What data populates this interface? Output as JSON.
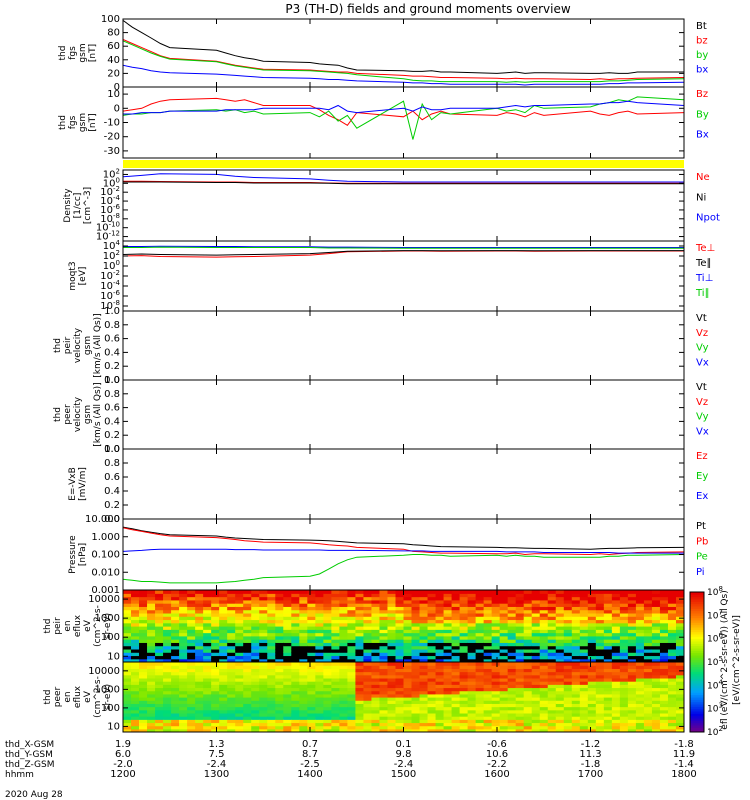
{
  "figure": {
    "title": "P3 (TH-D) fields and ground moments overview",
    "date_label": "2020 Aug 28",
    "colorbar_label": "[eV/(cm^2-s-sr-eV)]",
    "colorbar_label_inner": "efl (eV/(cm^2-s-sr-eV)) (All Qs)"
  },
  "chart_data": [
    {
      "id": "fgs_gsm",
      "type": "line",
      "ylabel": [
        "thd",
        "fgs",
        "gsm",
        "[nT]"
      ],
      "ylim": [
        0,
        100
      ],
      "ytick_labels": [
        "0",
        "20",
        "40",
        "60",
        "80",
        "100"
      ],
      "x": [
        1200,
        1210,
        1220,
        1230,
        1240,
        1250,
        1300,
        1310,
        1320,
        1330,
        1340,
        1350,
        1400,
        1410,
        1420,
        1430,
        1440,
        1450,
        1500,
        1510,
        1520,
        1530,
        1540,
        1550,
        1600,
        1610,
        1620,
        1630,
        1640,
        1650,
        1700,
        1710,
        1720,
        1730,
        1740,
        1750,
        1800
      ],
      "series": [
        {
          "name": "Bt",
          "color": "#000000",
          "values": [
            98,
            88,
            80,
            72,
            64,
            58,
            54,
            50,
            46,
            43,
            41,
            38,
            36,
            34,
            33,
            32,
            28,
            25,
            24,
            23,
            23,
            24,
            22,
            22,
            20,
            21,
            22,
            20,
            21,
            21,
            20,
            20,
            21,
            20,
            20,
            22,
            22
          ]
        },
        {
          "name": "bz",
          "color": "#ff0000",
          "values": [
            70,
            64,
            58,
            52,
            46,
            42,
            38,
            35,
            32,
            30,
            28,
            26,
            25,
            24,
            23,
            22,
            22,
            20,
            17,
            16,
            16,
            15,
            14,
            14,
            13,
            12,
            13,
            12,
            12,
            12,
            11,
            12,
            11,
            12,
            12,
            13,
            14
          ]
        },
        {
          "name": "by",
          "color": "#00cc00",
          "values": [
            68,
            62,
            56,
            50,
            45,
            41,
            37,
            34,
            31,
            29,
            27,
            25,
            24,
            23,
            22,
            21,
            20,
            18,
            12,
            10,
            9,
            9,
            8,
            8,
            8,
            7,
            8,
            7,
            8,
            8,
            8,
            8,
            9,
            9,
            10,
            11,
            12
          ]
        },
        {
          "name": "bx",
          "color": "#0000ff",
          "values": [
            32,
            29,
            27,
            24,
            22,
            21,
            19,
            18,
            17,
            16,
            15,
            14,
            13,
            12,
            11,
            11,
            10,
            9,
            7,
            6,
            6,
            5,
            5,
            4,
            4,
            4,
            4,
            3,
            4,
            4,
            4,
            4,
            5,
            5,
            6,
            6,
            7
          ]
        }
      ]
    },
    {
      "id": "fgs_gsm_detrend",
      "type": "line",
      "ylabel": [
        "thd",
        "fgs",
        "gsm",
        "[nT]"
      ],
      "ylim": [
        -35,
        15
      ],
      "ytick_labels": [
        "-30",
        "-20",
        "-10",
        "0",
        "10"
      ],
      "x": [
        1200,
        1210,
        1220,
        1230,
        1240,
        1250,
        1300,
        1310,
        1320,
        1330,
        1340,
        1350,
        1400,
        1410,
        1420,
        1430,
        1440,
        1450,
        1500,
        1510,
        1520,
        1530,
        1540,
        1550,
        1600,
        1610,
        1620,
        1630,
        1640,
        1650,
        1700,
        1710,
        1720,
        1730,
        1740,
        1750,
        1800
      ],
      "series": [
        {
          "name": "Bz",
          "color": "#ff0000",
          "values": [
            -2,
            -1,
            0,
            3,
            5,
            6,
            7,
            6,
            5,
            6,
            4,
            2,
            2,
            -1,
            -5,
            -8,
            -12,
            -3,
            -6,
            -2,
            -8,
            -4,
            -2,
            -4,
            -5,
            -3,
            -4,
            -6,
            -3,
            -5,
            -2,
            -4,
            -5,
            -3,
            -2,
            -4,
            -3
          ]
        },
        {
          "name": "By",
          "color": "#00cc00",
          "values": [
            -5,
            -4,
            -4,
            -3,
            -3,
            -2,
            -1,
            -2,
            -1,
            -3,
            -2,
            -4,
            -3,
            -6,
            -2,
            -9,
            -5,
            -14,
            5,
            -22,
            3,
            -8,
            -3,
            -4,
            0,
            -2,
            -1,
            -3,
            2,
            0,
            1,
            3,
            4,
            6,
            5,
            8,
            6
          ]
        },
        {
          "name": "Bx",
          "color": "#0000ff",
          "values": [
            -4,
            -4,
            -3,
            -3,
            -3,
            -2,
            -2,
            -1,
            -1,
            -1,
            -1,
            0,
            0,
            0,
            -1,
            2,
            -2,
            -3,
            0,
            -2,
            1,
            -1,
            -1,
            0,
            0,
            1,
            2,
            1,
            2,
            2,
            3,
            3,
            4,
            4,
            5,
            4,
            2
          ]
        }
      ]
    },
    {
      "id": "density",
      "type": "line",
      "log_y": true,
      "ylabel": [
        "Density",
        "[1/cc]",
        "[cm^-3]"
      ],
      "ylim": [
        1e-13,
        1000
      ],
      "ytick_labels": [
        "10^-12",
        "10^-10",
        "10^-8",
        "10^-6",
        "10^-4",
        "10^-2",
        "10^0",
        "10^2"
      ],
      "x": [
        1200,
        1220,
        1240,
        1300,
        1320,
        1340,
        1400,
        1420,
        1440,
        1500,
        1520,
        1540,
        1600,
        1620,
        1640,
        1700,
        1720,
        1740,
        1800
      ],
      "series": [
        {
          "name": "Ne",
          "color": "#ff0000",
          "values": [
            3,
            3,
            2.5,
            2,
            2,
            1.5,
            1.5,
            1.2,
            1,
            1,
            1,
            1,
            1,
            1,
            1,
            1,
            1,
            1,
            1
          ]
        },
        {
          "name": "Ni",
          "color": "#000000",
          "values": [
            2,
            2,
            2,
            1.5,
            1.5,
            1.2,
            1.2,
            1,
            0.8,
            0.8,
            0.8,
            0.8,
            0.8,
            0.8,
            0.8,
            0.8,
            0.8,
            0.8,
            0.8
          ]
        },
        {
          "name": "Npot",
          "color": "#0000ff",
          "values": [
            30,
            60,
            150,
            100,
            40,
            20,
            10,
            5,
            3,
            2,
            2,
            2,
            2,
            2,
            2,
            2,
            2,
            2,
            2
          ]
        }
      ]
    },
    {
      "id": "temperature",
      "type": "line",
      "log_y": true,
      "ylabel": [
        "moqt3",
        "[eV]"
      ],
      "ylim": [
        1e-09,
        100000
      ],
      "ytick_labels": [
        "10^-8",
        "10^-6",
        "10^-4",
        "10^-2",
        "10^0",
        "10^2",
        "10^4"
      ],
      "x": [
        1200,
        1220,
        1240,
        1300,
        1320,
        1340,
        1400,
        1420,
        1440,
        1500,
        1520,
        1540,
        1600,
        1620,
        1640,
        1700,
        1720,
        1740,
        1800
      ],
      "series": [
        {
          "name": "Te⊥",
          "color": "#ff0000",
          "values": [
            100,
            120,
            80,
            60,
            70,
            80,
            150,
            300,
            700,
            1000,
            1000,
            900,
            1000,
            1000,
            900,
            1000,
            1000,
            1000,
            1000
          ]
        },
        {
          "name": "Te∥",
          "color": "#000000",
          "values": [
            200,
            250,
            200,
            150,
            180,
            200,
            300,
            500,
            900,
            1200,
            1200,
            1100,
            1200,
            1200,
            1100,
            1200,
            1200,
            1200,
            1200
          ]
        },
        {
          "name": "Ti⊥",
          "color": "#0000ff",
          "values": [
            8000,
            8000,
            9000,
            8000,
            8000,
            7000,
            7000,
            6000,
            6000,
            5000,
            5000,
            5000,
            5000,
            5000,
            5000,
            5000,
            5000,
            5000,
            5000
          ]
        },
        {
          "name": "Ti∥",
          "color": "#00cc00",
          "values": [
            5000,
            5000,
            6000,
            5000,
            5000,
            5000,
            5000,
            4000,
            4000,
            3500,
            3500,
            3500,
            3500,
            3500,
            3500,
            3500,
            3500,
            3500,
            3500
          ]
        }
      ]
    },
    {
      "id": "peir_velocity",
      "type": "line",
      "ylabel": [
        "thd",
        "peir",
        "velocity",
        "gsm",
        "[km/s (All Qs)]"
      ],
      "ylim": [
        0,
        1
      ],
      "ytick_labels": [
        "0.0",
        "0.2",
        "0.4",
        "0.6",
        "0.8",
        "1.0"
      ],
      "series": [
        {
          "name": "Vt",
          "color": "#000000",
          "values": []
        },
        {
          "name": "Vz",
          "color": "#ff0000",
          "values": []
        },
        {
          "name": "Vy",
          "color": "#00cc00",
          "values": []
        },
        {
          "name": "Vx",
          "color": "#0000ff",
          "values": []
        }
      ]
    },
    {
      "id": "peer_velocity",
      "type": "line",
      "ylabel": [
        "thd",
        "peer",
        "velocity",
        "gsm",
        "[km/s (All Qs)]"
      ],
      "ylim": [
        0,
        1
      ],
      "ytick_labels": [
        "0.0",
        "0.2",
        "0.4",
        "0.6",
        "0.8",
        "1.0"
      ],
      "series": [
        {
          "name": "Vt",
          "color": "#000000",
          "values": []
        },
        {
          "name": "Vz",
          "color": "#ff0000",
          "values": []
        },
        {
          "name": "Vy",
          "color": "#00cc00",
          "values": []
        },
        {
          "name": "Vx",
          "color": "#0000ff",
          "values": []
        }
      ]
    },
    {
      "id": "efield",
      "type": "line",
      "ylabel": [
        "E=-VxB",
        "[mV/m]"
      ],
      "ylim": [
        0,
        1
      ],
      "ytick_labels": [
        "0.0",
        "0.2",
        "0.4",
        "0.6",
        "0.8",
        "1.0"
      ],
      "series": [
        {
          "name": "Ez",
          "color": "#ff0000",
          "values": []
        },
        {
          "name": "Ey",
          "color": "#00cc00",
          "values": []
        },
        {
          "name": "Ex",
          "color": "#0000ff",
          "values": []
        }
      ]
    },
    {
      "id": "pressure",
      "type": "line",
      "log_y": true,
      "ylabel": [
        "Pressure",
        "[nPa]"
      ],
      "ylim": [
        0.001,
        10
      ],
      "ytick_labels": [
        "0.001",
        "0.010",
        "0.100",
        "1.000",
        "10.000"
      ],
      "x": [
        1200,
        1210,
        1220,
        1230,
        1240,
        1250,
        1300,
        1310,
        1320,
        1330,
        1340,
        1350,
        1400,
        1410,
        1420,
        1430,
        1440,
        1450,
        1500,
        1510,
        1520,
        1530,
        1540,
        1550,
        1600,
        1610,
        1620,
        1630,
        1640,
        1650,
        1700,
        1710,
        1720,
        1730,
        1740,
        1750,
        1800
      ],
      "series": [
        {
          "name": "Pt",
          "color": "#000000",
          "values": [
            3.5,
            2.8,
            2.2,
            1.8,
            1.5,
            1.3,
            1.1,
            0.95,
            0.85,
            0.8,
            0.75,
            0.7,
            0.65,
            0.62,
            0.6,
            0.55,
            0.5,
            0.45,
            0.4,
            0.35,
            0.33,
            0.3,
            0.28,
            0.27,
            0.25,
            0.24,
            0.24,
            0.23,
            0.22,
            0.22,
            0.2,
            0.21,
            0.22,
            0.22,
            0.23,
            0.24,
            0.25
          ]
        },
        {
          "name": "Pb",
          "color": "#ff0000",
          "values": [
            3.2,
            2.5,
            2.0,
            1.6,
            1.3,
            1.1,
            0.9,
            0.8,
            0.7,
            0.6,
            0.55,
            0.5,
            0.45,
            0.4,
            0.35,
            0.32,
            0.3,
            0.25,
            0.2,
            0.15,
            0.14,
            0.13,
            0.12,
            0.12,
            0.11,
            0.11,
            0.12,
            0.1,
            0.11,
            0.11,
            0.1,
            0.11,
            0.1,
            0.11,
            0.12,
            0.13,
            0.14
          ]
        },
        {
          "name": "Pe",
          "color": "#00cc00",
          "values": [
            0.004,
            0.0035,
            0.003,
            0.003,
            0.0028,
            0.0025,
            0.0025,
            0.0028,
            0.003,
            0.0035,
            0.004,
            0.005,
            0.006,
            0.008,
            0.015,
            0.03,
            0.05,
            0.07,
            0.09,
            0.1,
            0.1,
            0.09,
            0.09,
            0.08,
            0.09,
            0.08,
            0.09,
            0.08,
            0.08,
            0.07,
            0.07,
            0.07,
            0.08,
            0.08,
            0.09,
            0.09,
            0.1
          ]
        },
        {
          "name": "Pi",
          "color": "#0000ff",
          "values": [
            0.15,
            0.16,
            0.17,
            0.19,
            0.2,
            0.2,
            0.2,
            0.2,
            0.19,
            0.19,
            0.19,
            0.18,
            0.18,
            0.18,
            0.17,
            0.17,
            0.17,
            0.17,
            0.16,
            0.16,
            0.16,
            0.15,
            0.15,
            0.15,
            0.15,
            0.14,
            0.14,
            0.14,
            0.14,
            0.13,
            0.13,
            0.13,
            0.13,
            0.12,
            0.12,
            0.12,
            0.12
          ]
        }
      ]
    },
    {
      "id": "peir_en_eflux",
      "type": "heatmap",
      "log_y": true,
      "ylabel": [
        "thd",
        "peir",
        "en",
        "eflux",
        "eV",
        "(cm^2-s-",
        "sr-eV)"
      ],
      "ylim": [
        5,
        30000
      ],
      "ytick_labels": [
        "10",
        "100",
        "1000",
        "10000"
      ],
      "color_scale": "log",
      "clim": [
        100,
        100000000.0
      ]
    },
    {
      "id": "peer_en_eflux",
      "type": "heatmap",
      "log_y": true,
      "ylabel": [
        "thd",
        "peer",
        "en",
        "eflux",
        "eV",
        "(cm^2-s-",
        "sr-eV)"
      ],
      "ylim": [
        5,
        30000
      ],
      "ytick_labels": [
        "10",
        "100",
        "1000",
        "10000"
      ],
      "color_scale": "log",
      "clim": [
        100,
        100000000.0
      ]
    }
  ],
  "colorbar": {
    "tick_labels": [
      "10^2",
      "10^3",
      "10^4",
      "10^5",
      "10^6",
      "10^7",
      "10^8"
    ]
  },
  "x_axis": {
    "xlim": [
      1200,
      1800
    ],
    "rows": [
      {
        "label": "thd_X-GSM",
        "values": [
          "1.9",
          "1.3",
          "0.7",
          "0.1",
          "-0.6",
          "-1.2",
          "-1.8"
        ]
      },
      {
        "label": "thd_Y-GSM",
        "values": [
          "6.0",
          "7.5",
          "8.7",
          "9.8",
          "10.6",
          "11.3",
          "11.9"
        ]
      },
      {
        "label": "thd_Z-GSM",
        "values": [
          "-2.0",
          "-2.4",
          "-2.5",
          "-2.4",
          "-2.2",
          "-1.8",
          "-1.4"
        ]
      },
      {
        "label": "hhmm",
        "values": [
          "1200",
          "1300",
          "1400",
          "1500",
          "1600",
          "1700",
          "1800"
        ]
      }
    ]
  }
}
